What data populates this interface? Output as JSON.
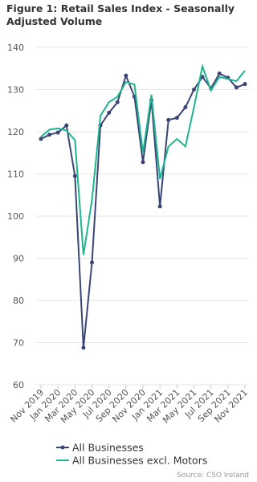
{
  "chart_data": {
    "type": "line",
    "title_lines": [
      "Figure 1: Retail Sales Index - Seasonally",
      "Adjusted Volume"
    ],
    "categories": [
      "Nov 2019",
      null,
      "Jan 2020",
      null,
      "Mar 2020",
      null,
      "May 2020",
      null,
      "Jul 2020",
      null,
      "Sep 2020",
      null,
      "Nov 2020",
      null,
      "Jan 2021",
      null,
      "Mar 2021",
      null,
      "May 2021",
      null,
      "Jul 2021",
      null,
      "Sep 2021",
      null,
      "Nov 2021"
    ],
    "series": [
      {
        "name": "All Businesses",
        "color": "#3b4676",
        "markers": true,
        "values": [
          118.3,
          119.3,
          119.8,
          121.5,
          109.5,
          68.8,
          89.0,
          121.5,
          124.5,
          127.0,
          133.3,
          128.3,
          112.8,
          127.5,
          102.3,
          122.8,
          123.3,
          125.8,
          130.0,
          133.0,
          130.3,
          133.8,
          132.8,
          130.5,
          131.3
        ]
      },
      {
        "name": "All Businesses excl. Motors",
        "color": "#1db58d",
        "markers": false,
        "values": [
          118.8,
          120.5,
          120.8,
          120.3,
          118.0,
          90.8,
          103.8,
          123.8,
          127.0,
          128.3,
          131.8,
          131.2,
          115.0,
          128.8,
          108.8,
          116.5,
          118.3,
          116.5,
          125.8,
          135.5,
          129.8,
          133.0,
          132.5,
          132.0,
          134.5
        ]
      }
    ],
    "ylim": [
      60,
      140
    ],
    "yticks": [
      60,
      70,
      80,
      90,
      100,
      110,
      120,
      130,
      140
    ],
    "grid": true,
    "source": "Source: CSO Ireland"
  }
}
